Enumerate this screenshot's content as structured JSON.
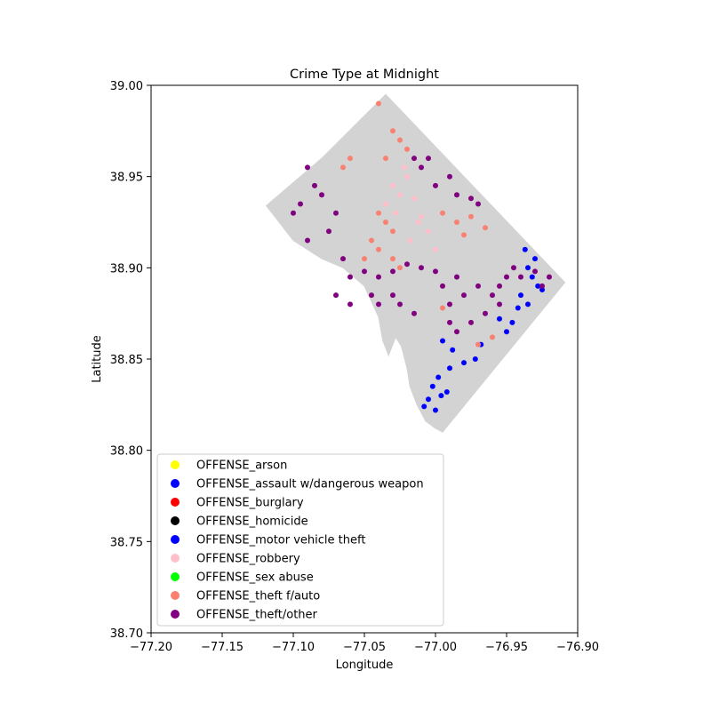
{
  "chart_data": {
    "type": "scatter",
    "title": "Crime Type at Midnight",
    "xlabel": "Longitude",
    "ylabel": "Latitude",
    "xlim": [
      -77.2,
      -76.9
    ],
    "ylim": [
      38.7,
      39.0
    ],
    "x_ticks": [
      -77.2,
      -77.15,
      -77.1,
      -77.05,
      -77.0,
      -76.95,
      -76.9
    ],
    "x_tick_labels": [
      "−77.20",
      "−77.15",
      "−77.10",
      "−77.05",
      "−77.00",
      "−76.95",
      "−76.90"
    ],
    "y_ticks": [
      38.7,
      38.75,
      38.8,
      38.85,
      38.9,
      38.95,
      39.0
    ],
    "y_tick_labels": [
      "38.70",
      "38.75",
      "38.80",
      "38.85",
      "38.90",
      "38.95",
      "39.00"
    ],
    "grid": false,
    "legend_position": "lower-left",
    "boundary_color": "#d3d3d3",
    "boundary": [
      [
        -77.035,
        38.995
      ],
      [
        -76.909,
        38.892
      ],
      [
        -76.995,
        38.81
      ],
      [
        -77.0,
        38.812
      ],
      [
        -77.007,
        38.816
      ],
      [
        -77.013,
        38.825
      ],
      [
        -77.018,
        38.835
      ],
      [
        -77.02,
        38.845
      ],
      [
        -77.024,
        38.857
      ],
      [
        -77.028,
        38.862
      ],
      [
        -77.033,
        38.852
      ],
      [
        -77.037,
        38.86
      ],
      [
        -77.04,
        38.873
      ],
      [
        -77.05,
        38.89
      ],
      [
        -77.065,
        38.9
      ],
      [
        -77.08,
        38.905
      ],
      [
        -77.1,
        38.915
      ],
      [
        -77.11,
        38.925
      ],
      [
        -77.119,
        38.934
      ],
      [
        -77.08,
        38.96
      ]
    ],
    "series": [
      {
        "name": "OFFENSE_arson",
        "color": "#ffff00",
        "points": []
      },
      {
        "name": "OFFENSE_assault w/dangerous weapon",
        "color": "#0000ff",
        "points": [
          [
            -76.937,
            38.91
          ],
          [
            -76.93,
            38.905
          ],
          [
            -76.935,
            38.9
          ],
          [
            -76.932,
            38.895
          ],
          [
            -76.928,
            38.89
          ],
          [
            -76.94,
            38.885
          ],
          [
            -76.935,
            38.88
          ],
          [
            -76.925,
            38.888
          ],
          [
            -76.942,
            38.878
          ],
          [
            -76.946,
            38.87
          ],
          [
            -76.955,
            38.872
          ],
          [
            -76.95,
            38.865
          ],
          [
            -76.968,
            38.858
          ],
          [
            -76.972,
            38.85
          ],
          [
            -76.98,
            38.848
          ],
          [
            -76.988,
            38.855
          ],
          [
            -76.995,
            38.86
          ],
          [
            -76.99,
            38.845
          ],
          [
            -76.998,
            38.84
          ],
          [
            -77.002,
            38.835
          ],
          [
            -76.996,
            38.83
          ],
          [
            -77.005,
            38.828
          ],
          [
            -77.008,
            38.824
          ],
          [
            -77.0,
            38.822
          ],
          [
            -76.992,
            38.832
          ]
        ]
      },
      {
        "name": "OFFENSE_burglary",
        "color": "#ff0000",
        "points": []
      },
      {
        "name": "OFFENSE_homicide",
        "color": "#000000",
        "points": []
      },
      {
        "name": "OFFENSE_motor vehicle theft",
        "color": "#0000ff",
        "points": []
      },
      {
        "name": "OFFENSE_robbery",
        "color": "#ffc0cb",
        "points": [
          [
            -77.03,
            38.945
          ],
          [
            -77.02,
            38.95
          ],
          [
            -77.025,
            38.94
          ],
          [
            -77.015,
            38.938
          ],
          [
            -77.035,
            38.935
          ],
          [
            -77.028,
            38.93
          ],
          [
            -77.012,
            38.925
          ],
          [
            -77.005,
            38.92
          ],
          [
            -77.018,
            38.915
          ],
          [
            -77.0,
            38.91
          ],
          [
            -77.01,
            38.928
          ],
          [
            -77.022,
            38.955
          ]
        ]
      },
      {
        "name": "OFFENSE_sex abuse",
        "color": "#00ff00",
        "points": []
      },
      {
        "name": "OFFENSE_theft f/auto",
        "color": "#fa8072",
        "points": [
          [
            -77.04,
            38.99
          ],
          [
            -77.03,
            38.975
          ],
          [
            -77.025,
            38.97
          ],
          [
            -77.02,
            38.965
          ],
          [
            -77.035,
            38.96
          ],
          [
            -77.06,
            38.96
          ],
          [
            -77.065,
            38.955
          ],
          [
            -77.04,
            38.93
          ],
          [
            -77.035,
            38.925
          ],
          [
            -77.03,
            38.92
          ],
          [
            -77.045,
            38.915
          ],
          [
            -77.04,
            38.91
          ],
          [
            -77.03,
            38.905
          ],
          [
            -77.05,
            38.905
          ],
          [
            -77.025,
            38.9
          ],
          [
            -76.995,
            38.93
          ],
          [
            -76.985,
            38.925
          ],
          [
            -76.975,
            38.928
          ],
          [
            -76.965,
            38.922
          ],
          [
            -76.98,
            38.918
          ],
          [
            -76.995,
            38.878
          ],
          [
            -76.97,
            38.858
          ],
          [
            -76.96,
            38.862
          ]
        ]
      },
      {
        "name": "OFFENSE_theft/other",
        "color": "#800080",
        "points": [
          [
            -77.09,
            38.955
          ],
          [
            -77.085,
            38.945
          ],
          [
            -77.08,
            38.94
          ],
          [
            -77.095,
            38.935
          ],
          [
            -77.1,
            38.93
          ],
          [
            -77.07,
            38.93
          ],
          [
            -77.075,
            38.92
          ],
          [
            -77.09,
            38.915
          ],
          [
            -77.065,
            38.905
          ],
          [
            -77.06,
            38.895
          ],
          [
            -77.05,
            38.898
          ],
          [
            -77.04,
            38.895
          ],
          [
            -77.03,
            38.898
          ],
          [
            -77.02,
            38.902
          ],
          [
            -77.01,
            38.9
          ],
          [
            -77.0,
            38.898
          ],
          [
            -76.995,
            38.89
          ],
          [
            -76.985,
            38.895
          ],
          [
            -76.99,
            38.88
          ],
          [
            -76.98,
            38.885
          ],
          [
            -76.97,
            38.89
          ],
          [
            -76.96,
            38.885
          ],
          [
            -76.955,
            38.89
          ],
          [
            -76.95,
            38.895
          ],
          [
            -76.945,
            38.9
          ],
          [
            -76.94,
            38.895
          ],
          [
            -76.93,
            38.898
          ],
          [
            -76.92,
            38.895
          ],
          [
            -76.925,
            38.89
          ],
          [
            -77.01,
            38.955
          ],
          [
            -77.0,
            38.945
          ],
          [
            -76.99,
            38.95
          ],
          [
            -76.985,
            38.94
          ],
          [
            -76.975,
            38.938
          ],
          [
            -76.97,
            38.935
          ],
          [
            -77.015,
            38.96
          ],
          [
            -77.005,
            38.96
          ],
          [
            -77.04,
            38.88
          ],
          [
            -77.045,
            38.885
          ],
          [
            -77.03,
            38.885
          ],
          [
            -77.025,
            38.88
          ],
          [
            -77.015,
            38.875
          ],
          [
            -76.99,
            38.87
          ],
          [
            -76.985,
            38.865
          ],
          [
            -76.975,
            38.87
          ],
          [
            -76.965,
            38.875
          ],
          [
            -76.955,
            38.88
          ],
          [
            -77.06,
            38.88
          ],
          [
            -77.07,
            38.885
          ]
        ]
      }
    ],
    "legend": [
      {
        "label": "OFFENSE_arson",
        "color": "#ffff00"
      },
      {
        "label": "OFFENSE_assault w/dangerous weapon",
        "color": "#0000ff"
      },
      {
        "label": "OFFENSE_burglary",
        "color": "#ff0000"
      },
      {
        "label": "OFFENSE_homicide",
        "color": "#000000"
      },
      {
        "label": "OFFENSE_motor vehicle theft",
        "color": "#0000ff"
      },
      {
        "label": "OFFENSE_robbery",
        "color": "#ffc0cb"
      },
      {
        "label": "OFFENSE_sex abuse",
        "color": "#00ff00"
      },
      {
        "label": "OFFENSE_theft f/auto",
        "color": "#fa8072"
      },
      {
        "label": "OFFENSE_theft/other",
        "color": "#800080"
      }
    ]
  }
}
